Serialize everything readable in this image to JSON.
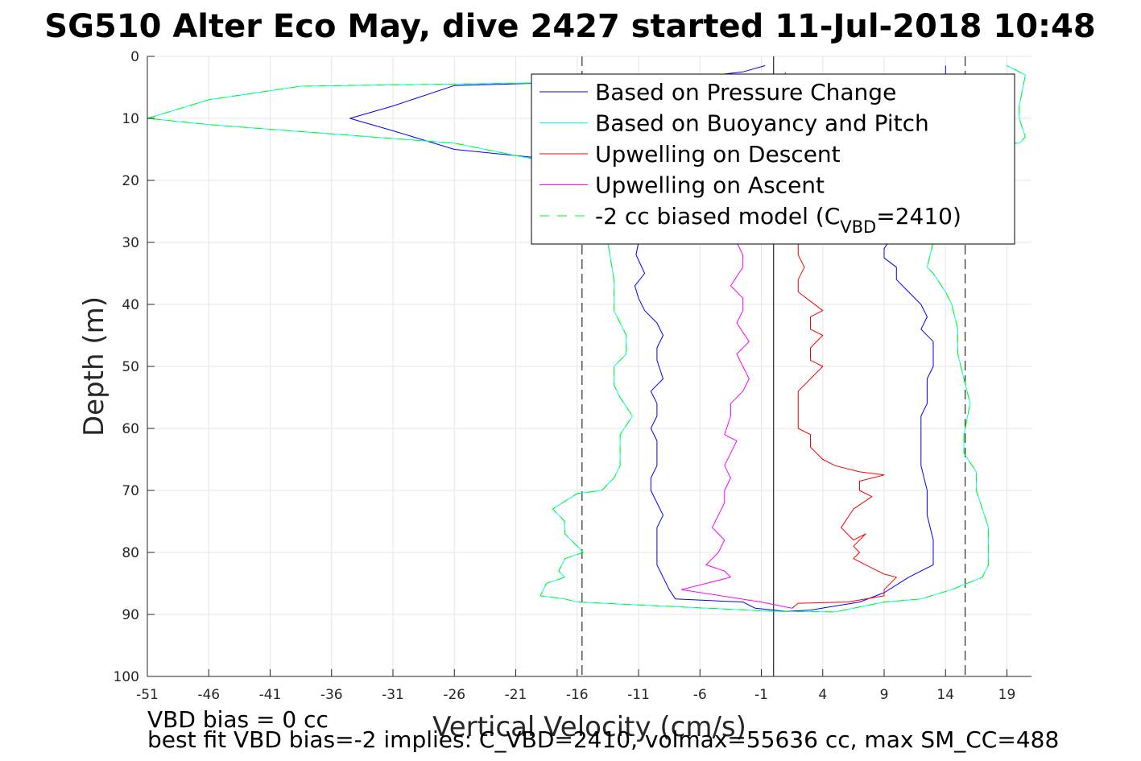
{
  "chart_data": {
    "type": "line",
    "title": "SG510 Alter Eco May, dive 2427 started 11-Jul-2018 10:48",
    "xlabel": "Vertical Velocity (cm/s)",
    "ylabel": "Depth (m)",
    "xlim": [
      -51,
      21
    ],
    "ylim": [
      0,
      100
    ],
    "y_reversed": true,
    "grid": true,
    "xticks": [
      -51,
      -46,
      -41,
      -36,
      -31,
      -26,
      -21,
      -16,
      -11,
      -6,
      -1,
      4,
      9,
      14,
      19
    ],
    "yticks": [
      0,
      10,
      20,
      30,
      40,
      50,
      60,
      70,
      80,
      90,
      100
    ],
    "reference_lines": {
      "solid_x": 0.0,
      "dashed_x": [
        -15.6,
        15.6
      ]
    },
    "legend": {
      "location": "top-right",
      "entries": [
        {
          "label": "Based on Pressure Change",
          "color": "#0000ff",
          "dash": false
        },
        {
          "label": "Based on Buoyancy and Pitch",
          "color": "#00ffff",
          "dash": false
        },
        {
          "label": "Upwelling on Descent",
          "color": "#ff0000",
          "dash": false
        },
        {
          "label": "Upwelling on Ascent",
          "color": "#ff00ff",
          "dash": false
        },
        {
          "label": "-2 cc biased model (C",
          "sub": "VBD",
          "suffix": "=2410)",
          "color": "#00ff00",
          "dash": true
        }
      ]
    },
    "series": [
      {
        "name": "Based on Pressure Change",
        "color": "#0000ff",
        "dash": false,
        "x": [
          -0.7,
          -2.5,
          -7,
          -13,
          -26,
          -31,
          -34.5,
          -31,
          -26,
          -16,
          -14.5,
          -11,
          -11.2,
          -10.5,
          -11.3,
          -11,
          -10.5,
          -9.5,
          -9,
          -9.5,
          -9.5,
          -9,
          -10,
          -9.5,
          -9.5,
          -10,
          -9.5,
          -9.5,
          -9.5,
          -10,
          -10,
          -9.5,
          -9,
          -9.5,
          -9.5,
          -9.5,
          -9.5,
          -9,
          -8.5,
          -8,
          -2.5,
          -1.5,
          1,
          3,
          7,
          9,
          11,
          13,
          13,
          12.5,
          12.5,
          12,
          12,
          12,
          12.5,
          12.5,
          13,
          13,
          12,
          12.5,
          12,
          11,
          10,
          10,
          9,
          9,
          10,
          11.5,
          12,
          12,
          13.5,
          13.5,
          14,
          14
        ],
        "y": [
          1.5,
          2.5,
          3.5,
          4,
          4.7,
          8,
          10,
          12,
          15,
          17,
          18,
          30,
          32,
          35,
          37,
          39,
          41,
          43,
          45,
          47,
          49,
          52,
          54,
          56,
          58,
          60,
          62,
          64,
          66,
          68,
          70,
          72,
          74,
          76,
          78,
          80,
          82,
          84,
          86,
          87.5,
          88,
          89,
          89.5,
          89.3,
          88,
          86.5,
          84,
          82,
          78,
          74,
          70,
          66,
          62,
          58,
          56,
          52,
          50,
          46,
          44,
          42,
          40,
          38,
          36,
          34,
          32.5,
          31,
          28,
          24,
          20,
          16,
          12,
          6,
          3,
          1.5
        ]
      },
      {
        "name": "Based on Buoyancy and Pitch",
        "color": "#00ffff",
        "dash": false,
        "x": [
          -1,
          -20,
          -38.5,
          -46,
          -51,
          -46,
          -36,
          -26,
          -21,
          -15.5,
          -14,
          -13.5,
          -13.5,
          -13,
          -13,
          -12,
          -12,
          -13,
          -13,
          -12.5,
          -11.5,
          -12.5,
          -12.5,
          -12.5,
          -12.5,
          -13,
          -14,
          -16,
          -18,
          -17,
          -17,
          -16.5,
          -15.5,
          -17,
          -17.5,
          -17,
          -18.5,
          -19,
          -17,
          -16,
          0,
          5,
          9,
          12,
          14.5,
          17,
          17.5,
          17.5,
          17.5,
          17,
          16.5,
          16.5,
          15.5,
          15.5,
          16,
          15.5,
          15,
          15,
          14.5,
          14,
          13,
          12.5,
          13,
          12,
          12,
          12,
          12.5,
          13,
          20,
          20.5,
          20,
          20,
          20.5,
          19
        ],
        "y": [
          4,
          4.3,
          4.8,
          7,
          10,
          11,
          12.5,
          14,
          16,
          18,
          20,
          27,
          30,
          36,
          41,
          45,
          48,
          50,
          53,
          55,
          58,
          61,
          62,
          64,
          66,
          68,
          70,
          70.5,
          73,
          75,
          77,
          78,
          80,
          81,
          83,
          84,
          85,
          87,
          87.5,
          88,
          89.5,
          89.6,
          88,
          87.5,
          86,
          84,
          82,
          79,
          76,
          73,
          70,
          67,
          64,
          61,
          56,
          52,
          48,
          44,
          40,
          38,
          35,
          34,
          30,
          27,
          24,
          20,
          17,
          14,
          14,
          13,
          10,
          8,
          3,
          1.5
        ]
      },
      {
        "name": "Upwelling on Descent",
        "color": "#ff0000",
        "dash": false,
        "x": [
          2.5,
          2,
          2,
          2.5,
          2,
          2,
          4,
          3,
          3,
          4,
          3,
          3,
          4,
          3,
          2,
          2,
          2,
          3,
          3,
          3.5,
          4,
          5,
          7,
          9,
          8,
          7,
          7,
          8,
          6.5,
          5.5,
          6.5,
          7.5,
          6.5,
          7,
          6.5,
          8,
          9,
          10,
          9,
          9,
          6,
          2,
          1.5
        ],
        "y": [
          18,
          30,
          32,
          34,
          36,
          38,
          41,
          42,
          44,
          45,
          47,
          49,
          50,
          52,
          54,
          57,
          60,
          61,
          63,
          64,
          65,
          66,
          67,
          67.5,
          68,
          68.5,
          70,
          71,
          73,
          76,
          78,
          77,
          79,
          80,
          81,
          82.5,
          83.5,
          84,
          86,
          87,
          88,
          88.2,
          89
        ]
      },
      {
        "name": "Upwelling on Ascent",
        "color": "#ff00ff",
        "dash": false,
        "x": [
          1,
          -3.5,
          -3,
          -2.5,
          -2.5,
          -3.5,
          -2.5,
          -2.5,
          -3,
          -2,
          -3,
          -2.5,
          -2,
          -2.5,
          -3.5,
          -3.5,
          -4,
          -3,
          -3.5,
          -4,
          -3.5,
          -4,
          -4,
          -4.5,
          -5,
          -4,
          -4.5,
          -5,
          -5.5,
          -4,
          -3.5,
          -7.5,
          -1,
          1.5
        ],
        "y": [
          2.5,
          20,
          30,
          32,
          34,
          37,
          39,
          41,
          43,
          46,
          48,
          50,
          52,
          54,
          56,
          58,
          61,
          62,
          64,
          66,
          68,
          70,
          72,
          74,
          76,
          78,
          80,
          81,
          82,
          83,
          84,
          86,
          88,
          89
        ]
      },
      {
        "name": "-2 cc biased model (C_VBD=2410)",
        "color": "#00ff00",
        "dash": true,
        "x": [
          -1,
          -20,
          -38.5,
          -46,
          -51,
          -46,
          -36,
          -26,
          -21,
          -15.5,
          -14,
          -13.5,
          -13.5,
          -13,
          -13,
          -12,
          -12,
          -13,
          -13,
          -12.5,
          -11.5,
          -12.5,
          -12.5,
          -12.5,
          -12.5,
          -13,
          -14,
          -16,
          -18,
          -17,
          -17,
          -16.5,
          -15.5,
          -17,
          -17.5,
          -17,
          -18.5,
          -19,
          -17,
          -16,
          0,
          5,
          9,
          12,
          14.5,
          17,
          17.5,
          17.5,
          17.5,
          17,
          16.5,
          16.5,
          15.5,
          15.5,
          16,
          15.5,
          15,
          15,
          14.5,
          14,
          13,
          12.5,
          13,
          12,
          12,
          12,
          12.5,
          13,
          20,
          20.5,
          20,
          20,
          20.5,
          19
        ],
        "y": [
          4,
          4.3,
          4.8,
          7,
          10,
          11,
          12.5,
          14,
          16,
          18,
          20,
          27,
          30,
          36,
          41,
          45,
          48,
          50,
          53,
          55,
          58,
          61,
          62,
          64,
          66,
          68,
          70,
          70.5,
          73,
          75,
          77,
          78,
          80,
          81,
          83,
          84,
          85,
          87,
          87.5,
          88,
          89.5,
          89.6,
          88,
          87.5,
          86,
          84,
          82,
          79,
          76,
          73,
          70,
          67,
          64,
          61,
          56,
          52,
          48,
          44,
          40,
          38,
          35,
          34,
          30,
          27,
          24,
          20,
          17,
          14,
          14,
          13,
          10,
          8,
          3,
          1.5
        ]
      }
    ]
  },
  "footnotes": {
    "line1": "VBD bias = 0 cc",
    "line2": "best fit VBD bias=-2 implies: C_VBD=2410, volmax=55636 cc, max SM_CC=488"
  }
}
